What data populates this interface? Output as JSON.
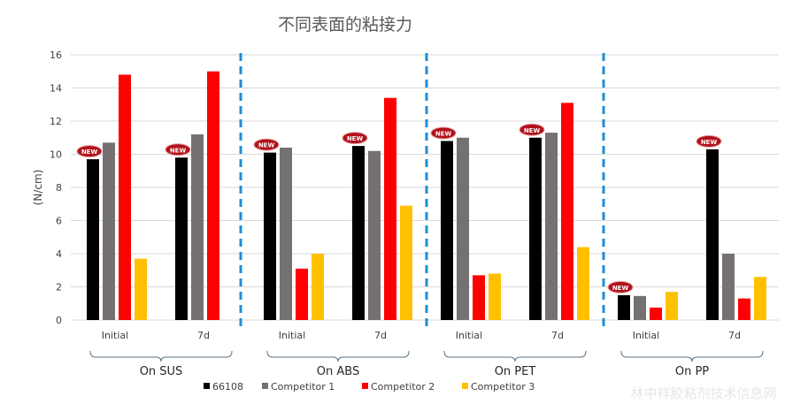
{
  "chart_data": {
    "type": "bar",
    "title": "不同表面的粘接力",
    "ylabel": "(N/cm)",
    "xlabel": "",
    "ylim": [
      0,
      16
    ],
    "yticks": [
      0,
      2,
      4,
      6,
      8,
      10,
      12,
      14,
      16
    ],
    "grid": true,
    "legend_position": "bottom",
    "groups": [
      {
        "label": "On SUS",
        "categories": [
          "Initial",
          "7d"
        ]
      },
      {
        "label": "On ABS",
        "categories": [
          "Initial",
          "7d"
        ]
      },
      {
        "label": "On PET",
        "categories": [
          "Initial",
          "7d"
        ]
      },
      {
        "label": "On PP",
        "categories": [
          "Initial",
          "7d"
        ]
      }
    ],
    "categories": [
      "Initial",
      "7d",
      "Initial",
      "7d",
      "Initial",
      "7d",
      "Initial",
      "7d"
    ],
    "series": [
      {
        "name": "66108",
        "color": "#000000",
        "values": [
          9.7,
          9.8,
          10.1,
          10.5,
          10.8,
          11.0,
          1.5,
          10.3
        ]
      },
      {
        "name": "Competitor 1",
        "color": "#767171",
        "values": [
          10.7,
          11.2,
          10.4,
          10.2,
          11.0,
          11.3,
          1.45,
          4.0
        ]
      },
      {
        "name": "Competitor 2",
        "color": "#FF0000",
        "values": [
          14.8,
          15.0,
          3.1,
          13.4,
          2.7,
          13.1,
          0.75,
          1.3
        ]
      },
      {
        "name": "Competitor 3",
        "color": "#FFC000",
        "values": [
          3.7,
          null,
          4.0,
          6.9,
          2.8,
          4.4,
          1.7,
          2.6
        ]
      }
    ],
    "badge": {
      "text": "NEW",
      "series": "66108"
    },
    "divider_color": "#1F8DD6"
  },
  "watermark": "林中祥胶粘剂技术信息网"
}
